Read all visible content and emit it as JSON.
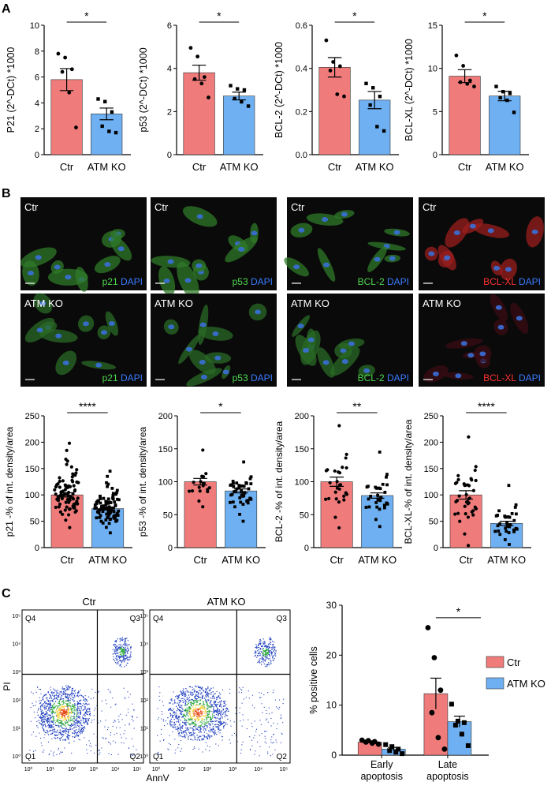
{
  "panel_labels": [
    "A",
    "B",
    "C"
  ],
  "colors": {
    "ctr": "#f07b7b",
    "atm": "#6fb0f2",
    "micro_bg": "#0a0a0a"
  },
  "panel_a": [
    {
      "ylabel": "P21 (2^-DCt) *1000",
      "ylim": [
        0,
        10
      ],
      "ticks": [
        "0",
        "2",
        "4",
        "6",
        "8",
        "10"
      ],
      "tickvals": [
        0,
        2,
        4,
        6,
        8,
        10
      ],
      "categories": [
        "Ctr",
        "ATM KO"
      ],
      "means": [
        5.8,
        3.15
      ],
      "sem": [
        0.85,
        0.45
      ],
      "sig": "*",
      "points": [
        [
          7.8,
          7.5,
          6.6,
          6.4,
          4.8,
          2.1
        ],
        [
          4.3,
          4.1,
          3.3,
          2.2,
          1.8,
          1.7
        ]
      ]
    },
    {
      "ylabel": "p53 (2^-DCt) *1000",
      "ylim": [
        0,
        6
      ],
      "ticks": [
        "0",
        "2",
        "4",
        "6"
      ],
      "tickvals": [
        0,
        2,
        4,
        6
      ],
      "categories": [
        "Ctr",
        "ATM KO"
      ],
      "means": [
        3.8,
        2.72
      ],
      "sem": [
        0.35,
        0.18
      ],
      "sig": "*",
      "points": [
        [
          4.95,
          4.55,
          3.6,
          3.5,
          3.3,
          2.65
        ],
        [
          3.2,
          3.05,
          3.0,
          2.6,
          2.45,
          2.25
        ]
      ]
    },
    {
      "ylabel": "BCL-2 (2^-DCt) *1000",
      "ylim": [
        0,
        0.6
      ],
      "ticks": [
        "0.0",
        "0.2",
        "0.4",
        "0.6"
      ],
      "tickvals": [
        0,
        0.2,
        0.4,
        0.6
      ],
      "categories": [
        "Ctr",
        "ATM KO"
      ],
      "means": [
        0.405,
        0.253
      ],
      "sem": [
        0.045,
        0.04
      ],
      "sig": "*",
      "points": [
        [
          0.53,
          0.43,
          0.41,
          0.39,
          0.28,
          0.27
        ],
        [
          0.33,
          0.31,
          0.27,
          0.23,
          0.13,
          0.11
        ]
      ]
    },
    {
      "ylabel": "BCL-XL (2^-DCt) *1000",
      "ylim": [
        0,
        15
      ],
      "ticks": [
        "0",
        "5",
        "10",
        "15"
      ],
      "tickvals": [
        0,
        5,
        10,
        15
      ],
      "categories": [
        "Ctr",
        "ATM KO"
      ],
      "means": [
        9.1,
        6.8
      ],
      "sem": [
        0.75,
        0.55
      ],
      "sig": "*",
      "points": [
        [
          11.5,
          10.3,
          8.6,
          8.4,
          8.2,
          7.9
        ],
        [
          7.9,
          7.3,
          7.1,
          6.6,
          6.3,
          4.9
        ]
      ]
    }
  ],
  "panel_b_images": {
    "rows": [
      "Ctr",
      "ATM KO"
    ],
    "columns": [
      {
        "marker": "p21",
        "marker_color": "#4fd84f",
        "dapi": "DAPI",
        "dapi_color": "#3a7bff",
        "tint": "green"
      },
      {
        "marker": "p53",
        "marker_color": "#4fd84f",
        "dapi": "DAPI",
        "dapi_color": "#3a7bff",
        "tint": "green"
      },
      {
        "marker": "BCL-2",
        "marker_color": "#4fd84f",
        "dapi": "DAPI",
        "dapi_color": "#3a7bff",
        "tint": "green"
      },
      {
        "marker": "BCL-XL",
        "marker_color": "#ff3030",
        "dapi": "DAPI",
        "dapi_color": "#3a7bff",
        "tint": "red"
      }
    ]
  },
  "panel_b_quant": [
    {
      "ylabel": "p21 -% of int. density/area",
      "ylim": [
        0,
        250
      ],
      "ticks": [
        "0",
        "50",
        "100",
        "150",
        "200",
        "250"
      ],
      "tickvals": [
        0,
        50,
        100,
        150,
        200,
        250
      ],
      "categories": [
        "Ctr",
        "ATM KO"
      ],
      "means": [
        100,
        74
      ],
      "sem": [
        4,
        3
      ],
      "sig": "****",
      "n": [
        90,
        95
      ],
      "spread": [
        [
          38,
          198
        ],
        [
          28,
          145
        ]
      ]
    },
    {
      "ylabel": "p53 -% of int. density/area",
      "ylim": [
        0,
        200
      ],
      "ticks": [
        "0",
        "50",
        "100",
        "150",
        "200"
      ],
      "tickvals": [
        0,
        50,
        100,
        150,
        200
      ],
      "categories": [
        "Ctr",
        "ATM KO"
      ],
      "means": [
        100,
        86
      ],
      "sem": [
        5,
        3
      ],
      "sig": "*",
      "n": [
        18,
        45
      ],
      "spread": [
        [
          62,
          148
        ],
        [
          40,
          130
        ]
      ]
    },
    {
      "ylabel": "BCL-2 -% of int. density/area",
      "ylim": [
        0,
        200
      ],
      "ticks": [
        "0",
        "50",
        "100",
        "150",
        "200"
      ],
      "tickvals": [
        0,
        50,
        100,
        150,
        200
      ],
      "categories": [
        "Ctr",
        "ATM KO"
      ],
      "means": [
        100,
        79
      ],
      "sem": [
        7,
        4
      ],
      "sig": "**",
      "n": [
        28,
        32
      ],
      "spread": [
        [
          30,
          185
        ],
        [
          32,
          145
        ]
      ]
    },
    {
      "ylabel": "BCL-XL-% of int. density/area",
      "ylim": [
        0,
        250
      ],
      "ticks": [
        "0",
        "50",
        "100",
        "150",
        "200",
        "250"
      ],
      "tickvals": [
        0,
        50,
        100,
        150,
        200,
        250
      ],
      "categories": [
        "Ctr",
        "ATM KO"
      ],
      "means": [
        100,
        46
      ],
      "sem": [
        8,
        4
      ],
      "sig": "****",
      "n": [
        40,
        35
      ],
      "spread": [
        [
          4,
          210
        ],
        [
          6,
          118
        ]
      ]
    }
  ],
  "panel_c_flow": {
    "plots": [
      {
        "title": "Ctr"
      },
      {
        "title": "ATM KO"
      }
    ],
    "xlabel": "AnnV",
    "ylabel": "PI",
    "quadrants": [
      "Q4",
      "Q3",
      "Q1",
      "Q2"
    ],
    "xticks": [
      "10⁰",
      "10¹",
      "10²",
      "10³",
      "10⁴",
      "10⁵"
    ],
    "yticks": [
      "10⁰",
      "10¹",
      "10²",
      "10³",
      "10⁴",
      "10⁵"
    ]
  },
  "chart_data": {
    "type": "bar",
    "categories": [
      "Early apoptosis",
      "Late apoptosis"
    ],
    "category_lines": [
      [
        "Early",
        "apoptosis"
      ],
      [
        "Late",
        "apoptosis"
      ]
    ],
    "ylabel": "% positive cells",
    "ylim": [
      0,
      30
    ],
    "ticks": [
      "0",
      "10",
      "20",
      "30"
    ],
    "tickvals": [
      0,
      10,
      20,
      30
    ],
    "legend_position": "right",
    "series": [
      {
        "name": "Ctr",
        "values": [
          2.6,
          12.3
        ],
        "sem": [
          0.25,
          3.1
        ],
        "points": [
          [
            3.0,
            2.9,
            2.7,
            2.6,
            2.4,
            2.2
          ],
          [
            25.5,
            19.5,
            13.0,
            8.5,
            3.5,
            1.2
          ]
        ]
      },
      {
        "name": "ATM KO",
        "values": [
          1.2,
          6.7
        ],
        "sem": [
          0.35,
          1.1
        ],
        "points": [
          [
            2.1,
            1.7,
            1.2,
            0.9,
            0.6,
            0.3
          ],
          [
            10.2,
            6.8,
            6.5,
            6.0,
            4.2,
            1.9
          ]
        ]
      }
    ],
    "significance": [
      {
        "category": "Late apoptosis",
        "label": "*"
      }
    ]
  }
}
